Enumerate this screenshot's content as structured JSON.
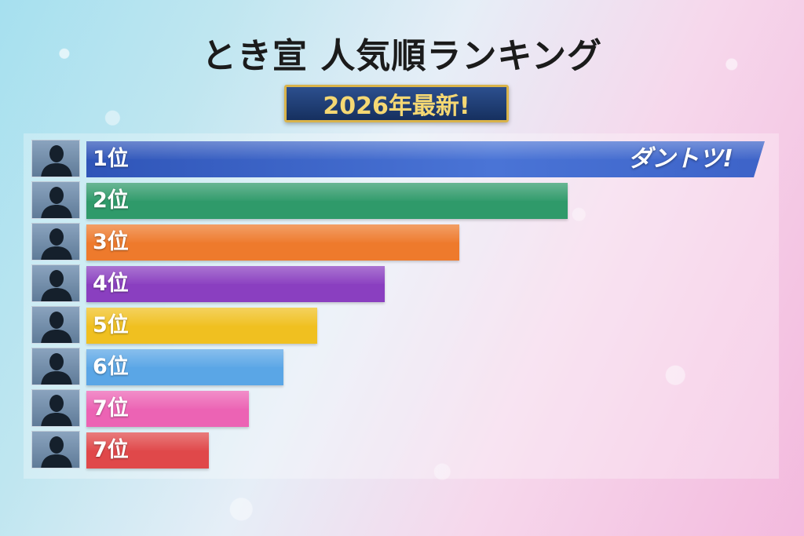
{
  "title": "とき宣 人気順ランキング",
  "badge": "2026年最新!",
  "chart_data": {
    "type": "bar",
    "orientation": "horizontal",
    "categories": [
      "1位",
      "2位",
      "3位",
      "4位",
      "5位",
      "6位",
      "7位",
      "7位"
    ],
    "values": [
      100,
      71,
      55,
      44,
      34,
      29,
      24,
      18
    ],
    "colors": [
      "#3f63c4",
      "#2f9a6a",
      "#ee7a2c",
      "#8a3fc0",
      "#f0c020",
      "#5aa6e6",
      "#ec63b4",
      "#e0484a"
    ],
    "annotations": [
      {
        "category_index": 0,
        "text": "ダントツ!"
      }
    ]
  }
}
